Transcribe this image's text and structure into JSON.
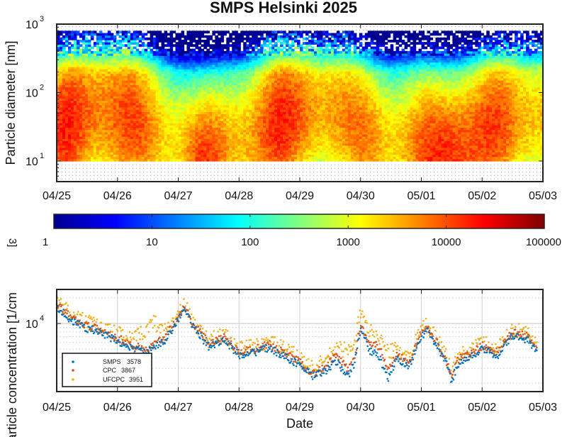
{
  "title": "SMPS Helsinki 2025",
  "chart_data": [
    {
      "type": "heatmap",
      "ylabel": "Particle diameter [nm]",
      "yscale": "log",
      "ylim": [
        5,
        1000
      ],
      "y_ticks": [
        {
          "value": 10,
          "base": "10",
          "exp": "1"
        },
        {
          "value": 100,
          "base": "10",
          "exp": "2"
        },
        {
          "value": 1000,
          "base": "10",
          "exp": "3"
        }
      ],
      "x_ticks": [
        "04/25",
        "04/26",
        "04/27",
        "04/28",
        "04/29",
        "04/30",
        "05/01",
        "05/02",
        "05/03"
      ],
      "x_range_days": [
        0,
        8
      ],
      "data_diameter_range_nm": [
        10,
        800
      ],
      "note": "Number size distribution dN/dlogDp, highest values (~10000+) at 20-100 nm, low values above 300 nm"
    },
    {
      "type": "colorbar",
      "scale": "log",
      "range": [
        1,
        100000
      ],
      "tick_labels": [
        "1",
        "10",
        "100",
        "1000",
        "10000",
        "100000"
      ],
      "label_fragment": "3]",
      "colormap": [
        "#00008f",
        "#0000ff",
        "#0080ff",
        "#00ffff",
        "#80ff80",
        "#ffff00",
        "#ff8000",
        "#ff0000",
        "#800000"
      ]
    },
    {
      "type": "scatter",
      "xlabel": "Date",
      "ylabel": "Particle concentration [1/cm",
      "yscale": "log",
      "ylim": [
        1600,
        25000
      ],
      "y_ticks": [
        {
          "value": 10000,
          "base": "10",
          "exp": "4"
        }
      ],
      "x_ticks": [
        "04/25",
        "04/26",
        "04/27",
        "04/28",
        "04/29",
        "04/30",
        "05/01",
        "05/02",
        "05/03"
      ],
      "x_range_days": [
        0,
        8
      ],
      "series": [
        {
          "name": "SMPS",
          "legend_value": "3578",
          "color": "#0072bd",
          "x": [
            0.0,
            0.25,
            0.5,
            0.75,
            1.0,
            1.25,
            1.5,
            1.6,
            1.75,
            2.0,
            2.1,
            2.25,
            2.5,
            2.75,
            3.0,
            3.25,
            3.5,
            3.75,
            4.0,
            4.2,
            4.4,
            4.6,
            4.8,
            4.9,
            5.0,
            5.15,
            5.3,
            5.45,
            5.6,
            5.8,
            6.0,
            6.1,
            6.25,
            6.4,
            6.5,
            6.6,
            6.75,
            7.0,
            7.25,
            7.5,
            7.75,
            7.9
          ],
          "y": [
            16000,
            10500,
            8800,
            7600,
            6200,
            5000,
            4600,
            5200,
            6000,
            11000,
            15000,
            9000,
            5400,
            6400,
            4300,
            4600,
            5200,
            4100,
            3300,
            2400,
            2700,
            3600,
            2400,
            3400,
            9000,
            4800,
            4200,
            2200,
            3900,
            3200,
            7200,
            8000,
            5600,
            3600,
            2100,
            3400,
            3800,
            5000,
            4200,
            7200,
            6500,
            4500
          ]
        },
        {
          "name": "CPC",
          "legend_value": "3867",
          "color": "#d95319",
          "x": [
            0.0,
            0.25,
            0.5,
            0.75,
            1.0,
            1.25,
            1.5,
            1.6,
            1.75,
            2.0,
            2.1,
            2.25,
            2.5,
            2.75,
            3.0,
            3.25,
            3.5,
            3.75,
            4.0,
            4.2,
            4.4,
            4.6,
            4.8,
            4.9,
            5.0,
            5.15,
            5.3,
            5.45,
            5.6,
            5.8,
            6.0,
            6.1,
            6.25,
            6.4,
            6.5,
            6.6,
            6.75,
            7.0,
            7.25,
            7.5,
            7.75,
            7.9
          ],
          "y": [
            17000,
            11500,
            9500,
            8200,
            6800,
            5500,
            5000,
            5700,
            6600,
            12000,
            16000,
            9800,
            6000,
            7000,
            4700,
            5000,
            5700,
            4500,
            3600,
            2600,
            3000,
            4200,
            2900,
            4000,
            9800,
            6000,
            5400,
            3000,
            4400,
            3600,
            7800,
            8700,
            6100,
            3900,
            2400,
            3800,
            4200,
            5500,
            4600,
            7900,
            7100,
            4900
          ]
        },
        {
          "name": "UFCPC",
          "legend_value": "3951",
          "color": "#edb120",
          "x": [
            0.0,
            0.25,
            0.5,
            0.75,
            1.0,
            1.25,
            1.5,
            1.6,
            1.75,
            2.0,
            2.1,
            2.25,
            2.5,
            2.75,
            3.0,
            3.25,
            3.5,
            3.75,
            4.0,
            4.2,
            4.4,
            4.6,
            4.8,
            4.9,
            5.0,
            5.15,
            5.3,
            5.45,
            5.6,
            5.8,
            6.0,
            6.1,
            6.25,
            6.4,
            6.5,
            6.6,
            6.75,
            7.0,
            7.25,
            7.5,
            7.75,
            7.9
          ],
          "y": [
            18000,
            12500,
            10500,
            9000,
            7600,
            6400,
            8800,
            10500,
            8000,
            12500,
            16500,
            10200,
            6400,
            7400,
            5000,
            5400,
            6200,
            5000,
            4000,
            3000,
            3600,
            5200,
            4800,
            6500,
            13000,
            8000,
            7200,
            4500,
            5200,
            4000,
            8600,
            9500,
            6600,
            4300,
            2700,
            4200,
            4600,
            6000,
            5000,
            8500,
            7800,
            5400
          ]
        }
      ]
    }
  ]
}
